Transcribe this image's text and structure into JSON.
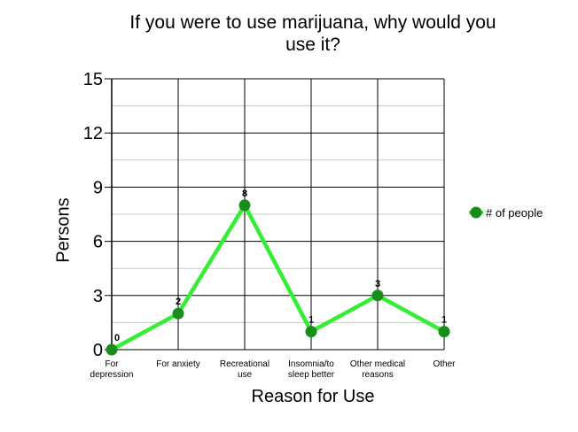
{
  "chart_data": {
    "type": "line",
    "title_lines": [
      "If you were to use marijuana, why would you",
      "use it?"
    ],
    "xlabel": "Reason for Use",
    "ylabel": "Persons",
    "categories": [
      [
        "For",
        "depression"
      ],
      [
        "For anxiety"
      ],
      [
        "Recreational",
        "use"
      ],
      [
        "Insomnia/to",
        "sleep better"
      ],
      [
        "Other medical",
        "reasons"
      ],
      [
        "Other"
      ]
    ],
    "yticks": [
      "0",
      "3",
      "6",
      "9",
      "12",
      "15"
    ],
    "ylim": [
      0,
      15
    ],
    "minor_gridlines": true,
    "legend_position": "right",
    "series": [
      {
        "name": "# of people",
        "values": [
          0,
          2,
          8,
          1,
          3,
          1
        ],
        "data_labels": [
          "0",
          "2",
          "8",
          "1",
          "3",
          "1"
        ],
        "line_color": "#33ee33",
        "marker_color": "#1a8c1a"
      }
    ]
  }
}
